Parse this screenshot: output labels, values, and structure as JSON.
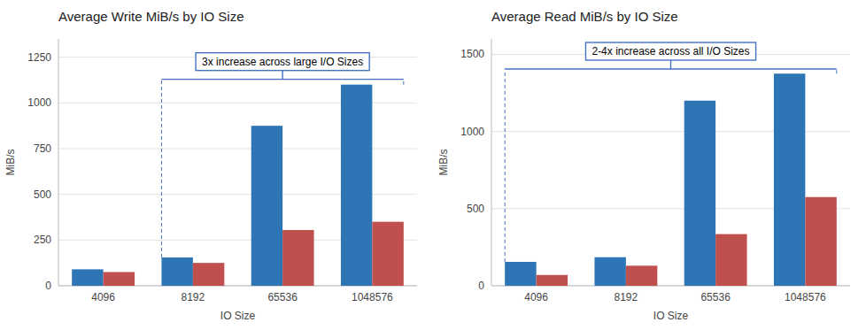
{
  "chart_data": [
    {
      "type": "bar",
      "title": "Average Write MiB/s by IO Size",
      "xlabel": "IO Size",
      "ylabel": "MiB/s",
      "categories": [
        "4096",
        "8192",
        "65536",
        "1048576"
      ],
      "series": [
        {
          "color": "#2E75B6",
          "values": [
            90,
            155,
            875,
            1100
          ]
        },
        {
          "color": "#C0504D",
          "values": [
            75,
            125,
            305,
            350
          ]
        }
      ],
      "ylim": [
        0,
        1350
      ],
      "yticks": [
        0,
        250,
        500,
        750,
        1000,
        1250
      ],
      "grid": true,
      "annotation": {
        "text": "3x increase across large I/O Sizes",
        "start": "8192",
        "end": "1048576"
      }
    },
    {
      "type": "bar",
      "title": "Average Read MiB/s by IO Size",
      "xlabel": "IO Size",
      "ylabel": "MiB/s",
      "categories": [
        "4096",
        "8192",
        "65536",
        "1048576"
      ],
      "series": [
        {
          "color": "#2E75B6",
          "values": [
            155,
            185,
            1200,
            1375
          ]
        },
        {
          "color": "#C0504D",
          "values": [
            70,
            130,
            335,
            575
          ]
        }
      ],
      "ylim": [
        0,
        1600
      ],
      "yticks": [
        0,
        500,
        1000,
        1500
      ],
      "grid": true,
      "annotation": {
        "text": "2-4x increase across all I/O Sizes",
        "start": "4096",
        "end": "1048576"
      }
    }
  ]
}
